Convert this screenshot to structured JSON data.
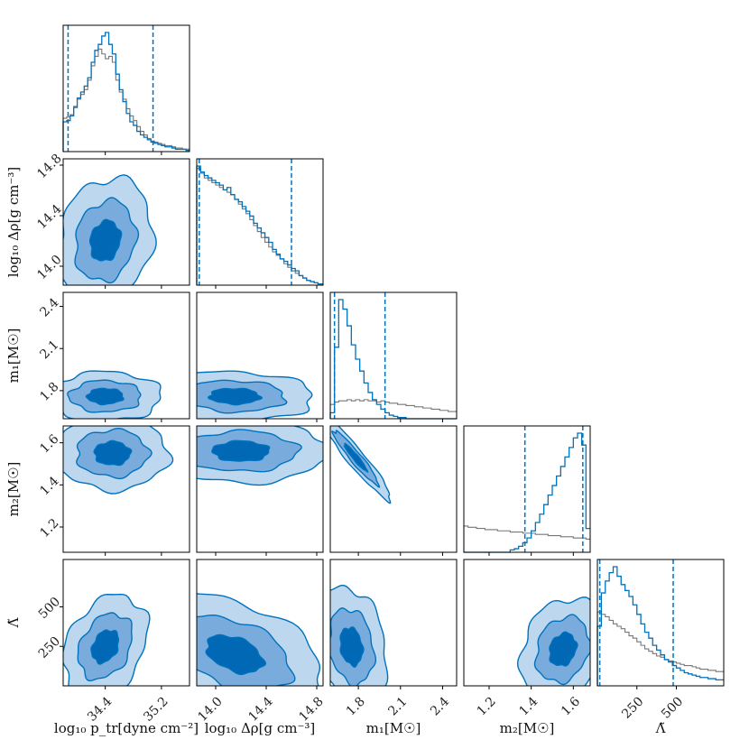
{
  "chart_data": {
    "type": "corner",
    "params": [
      {
        "key": "p",
        "label": "log₁₀ p_tr[dyne cm⁻²]",
        "range": [
          33.8,
          35.6
        ],
        "ticks": [
          34.4,
          35.2
        ],
        "tick_labels": [
          "34.4",
          "35.2"
        ],
        "hist_bins": [
          33.8,
          33.85,
          33.9,
          33.95,
          34.0,
          34.05,
          34.1,
          34.15,
          34.2,
          34.25,
          34.3,
          34.35,
          34.4,
          34.45,
          34.5,
          34.55,
          34.6,
          34.65,
          34.7,
          34.75,
          34.8,
          34.85,
          34.9,
          34.95,
          35.0,
          35.05,
          35.1,
          35.15,
          35.2,
          35.25,
          35.3,
          35.35,
          35.4,
          35.45,
          35.5,
          35.55,
          35.6
        ],
        "hist_post": [
          0.25,
          0.26,
          0.3,
          0.37,
          0.45,
          0.5,
          0.55,
          0.62,
          0.75,
          0.85,
          0.9,
          0.97,
          1.0,
          0.9,
          0.82,
          0.65,
          0.52,
          0.42,
          0.32,
          0.25,
          0.22,
          0.17,
          0.14,
          0.12,
          0.1,
          0.08,
          0.07,
          0.06,
          0.05,
          0.04,
          0.04,
          0.03,
          0.02,
          0.02,
          0.02,
          0.01
        ],
        "hist_prior": [
          0.28,
          0.29,
          0.31,
          0.38,
          0.44,
          0.48,
          0.52,
          0.6,
          0.72,
          0.8,
          0.86,
          0.82,
          0.78,
          0.8,
          0.75,
          0.6,
          0.5,
          0.44,
          0.36,
          0.3,
          0.26,
          0.21,
          0.17,
          0.14,
          0.11,
          0.09,
          0.08,
          0.07,
          0.06,
          0.05,
          0.05,
          0.04,
          0.03,
          0.03,
          0.02,
          0.02
        ],
        "quantiles": [
          33.87,
          35.08
        ]
      },
      {
        "key": "rho",
        "label": "log₁₀ Δρ[g cm⁻³]",
        "range": [
          13.85,
          14.85
        ],
        "ticks": [
          14.0,
          14.4,
          14.8
        ],
        "tick_labels": [
          "14.0",
          "14.4",
          "14.8"
        ],
        "hist_bins": [
          13.85,
          13.88,
          13.91,
          13.94,
          13.97,
          14.0,
          14.03,
          14.06,
          14.09,
          14.12,
          14.15,
          14.18,
          14.21,
          14.24,
          14.27,
          14.3,
          14.33,
          14.36,
          14.39,
          14.42,
          14.45,
          14.48,
          14.51,
          14.54,
          14.57,
          14.6,
          14.63,
          14.66,
          14.69,
          14.72,
          14.75,
          14.78,
          14.81,
          14.85
        ],
        "hist_post": [
          1.0,
          0.95,
          0.92,
          0.9,
          0.88,
          0.86,
          0.84,
          0.8,
          0.82,
          0.76,
          0.72,
          0.7,
          0.66,
          0.62,
          0.58,
          0.52,
          0.48,
          0.44,
          0.4,
          0.36,
          0.3,
          0.26,
          0.22,
          0.2,
          0.17,
          0.14,
          0.12,
          0.08,
          0.06,
          0.04,
          0.03,
          0.02,
          0.01
        ],
        "hist_prior": [
          0.98,
          0.94,
          0.9,
          0.88,
          0.86,
          0.84,
          0.82,
          0.8,
          0.78,
          0.76,
          0.72,
          0.68,
          0.64,
          0.6,
          0.55,
          0.5,
          0.45,
          0.4,
          0.36,
          0.32,
          0.28,
          0.25,
          0.22,
          0.18,
          0.15,
          0.12,
          0.1,
          0.08,
          0.06,
          0.04,
          0.03,
          0.02,
          0.01
        ],
        "quantiles": [
          13.87,
          14.6
        ]
      },
      {
        "key": "m1",
        "label": "m₁[M☉]",
        "range": [
          1.6,
          2.5
        ],
        "ticks": [
          1.8,
          2.1,
          2.4
        ],
        "tick_labels": [
          "1.8",
          "2.1",
          "2.4"
        ],
        "hist_bins": [
          1.6,
          1.63,
          1.66,
          1.69,
          1.72,
          1.75,
          1.78,
          1.81,
          1.84,
          1.87,
          1.9,
          1.93,
          1.96,
          1.99,
          2.02,
          2.05,
          2.08,
          2.11,
          2.14,
          2.17,
          2.2,
          2.23,
          2.26,
          2.29,
          2.32,
          2.35,
          2.38,
          2.41,
          2.44,
          2.47,
          2.5
        ],
        "hist_post": [
          0.05,
          0.6,
          1.0,
          0.92,
          0.78,
          0.62,
          0.5,
          0.4,
          0.3,
          0.22,
          0.16,
          0.12,
          0.08,
          0.05,
          0.03,
          0.02,
          0.01,
          0.01,
          0.0,
          0.0,
          0.0,
          0.0,
          0.0,
          0.0,
          0.0,
          0.0,
          0.0,
          0.0,
          0.0,
          0.0
        ],
        "hist_prior": [
          0.12,
          0.14,
          0.15,
          0.15,
          0.16,
          0.15,
          0.16,
          0.15,
          0.16,
          0.15,
          0.15,
          0.14,
          0.15,
          0.14,
          0.13,
          0.13,
          0.12,
          0.12,
          0.11,
          0.11,
          0.1,
          0.1,
          0.09,
          0.09,
          0.08,
          0.08,
          0.07,
          0.07,
          0.06,
          0.06
        ],
        "quantiles": [
          1.63,
          1.99
        ]
      },
      {
        "key": "m2",
        "label": "m₂[M☉]",
        "range": [
          1.08,
          1.68
        ],
        "ticks": [
          1.2,
          1.4,
          1.6
        ],
        "tick_labels": [
          "1.2",
          "1.4",
          "1.6"
        ],
        "hist_bins": [
          1.08,
          1.1,
          1.12,
          1.14,
          1.16,
          1.18,
          1.2,
          1.22,
          1.24,
          1.26,
          1.28,
          1.3,
          1.32,
          1.34,
          1.36,
          1.38,
          1.4,
          1.42,
          1.44,
          1.46,
          1.48,
          1.5,
          1.52,
          1.54,
          1.56,
          1.58,
          1.6,
          1.62,
          1.64,
          1.66,
          1.68
        ],
        "hist_post": [
          0.0,
          0.0,
          0.0,
          0.0,
          0.0,
          0.0,
          0.0,
          0.0,
          0.0,
          0.0,
          0.0,
          0.02,
          0.03,
          0.05,
          0.08,
          0.12,
          0.18,
          0.25,
          0.32,
          0.4,
          0.48,
          0.56,
          0.64,
          0.72,
          0.8,
          0.88,
          0.96,
          1.0,
          0.9,
          0.2
        ],
        "hist_prior": [
          0.22,
          0.21,
          0.21,
          0.2,
          0.2,
          0.19,
          0.19,
          0.19,
          0.18,
          0.18,
          0.18,
          0.17,
          0.17,
          0.17,
          0.16,
          0.16,
          0.16,
          0.15,
          0.15,
          0.15,
          0.14,
          0.14,
          0.14,
          0.13,
          0.13,
          0.13,
          0.12,
          0.12,
          0.12,
          0.11
        ],
        "quantiles": [
          1.37,
          1.645
        ]
      },
      {
        "key": "lam",
        "label": "Λ̃",
        "range": [
          0,
          800
        ],
        "ticks": [
          250,
          500
        ],
        "tick_labels": [
          "250",
          "500"
        ],
        "hist_bins": [
          0,
          25,
          50,
          75,
          100,
          125,
          150,
          175,
          200,
          225,
          250,
          275,
          300,
          325,
          350,
          375,
          400,
          425,
          450,
          475,
          500,
          525,
          550,
          575,
          600,
          625,
          650,
          675,
          700,
          725,
          750,
          775,
          800
        ],
        "hist_post": [
          0.5,
          0.78,
          0.88,
          0.95,
          1.0,
          0.92,
          0.85,
          0.8,
          0.75,
          0.68,
          0.6,
          0.52,
          0.45,
          0.4,
          0.34,
          0.3,
          0.26,
          0.22,
          0.2,
          0.17,
          0.15,
          0.13,
          0.11,
          0.1,
          0.09,
          0.08,
          0.07,
          0.07,
          0.06,
          0.06,
          0.05,
          0.05
        ],
        "hist_prior": [
          0.62,
          0.6,
          0.58,
          0.55,
          0.52,
          0.5,
          0.48,
          0.45,
          0.42,
          0.4,
          0.37,
          0.34,
          0.31,
          0.29,
          0.27,
          0.25,
          0.24,
          0.22,
          0.21,
          0.2,
          0.19,
          0.18,
          0.17,
          0.17,
          0.16,
          0.15,
          0.14,
          0.14,
          0.13,
          0.13,
          0.12,
          0.12
        ],
        "quantiles": [
          15,
          480
        ]
      }
    ],
    "posterior_2d": {
      "p-rho": {
        "mean": [
          34.4,
          14.2
        ],
        "sd": [
          0.27,
          0.2
        ],
        "corr": 0.15
      },
      "p-m1": {
        "mean": [
          34.4,
          1.76
        ],
        "sd": [
          0.32,
          0.07
        ],
        "corr": 0.0
      },
      "rho-m1": {
        "mean": [
          14.15,
          1.76
        ],
        "sd": [
          0.25,
          0.07
        ],
        "corr": -0.05
      },
      "p-m2": {
        "mean": [
          34.5,
          1.55
        ],
        "sd": [
          0.32,
          0.07
        ],
        "corr": 0.0
      },
      "rho-m2": {
        "mean": [
          14.2,
          1.56
        ],
        "sd": [
          0.28,
          0.06
        ],
        "corr": 0.0
      },
      "m1-m2": {
        "mean": [
          1.78,
          1.53
        ],
        "sd": [
          0.1,
          0.08
        ],
        "corr": -0.95
      },
      "p-lam": {
        "mean": [
          34.4,
          250
        ],
        "sd": [
          0.24,
          130
        ],
        "corr": 0.3
      },
      "rho-lam": {
        "mean": [
          14.15,
          200
        ],
        "sd": [
          0.28,
          150
        ],
        "corr": -0.4
      },
      "m1-lam": {
        "mean": [
          1.75,
          250
        ],
        "sd": [
          0.1,
          150
        ],
        "corr": -0.2
      },
      "m2-lam": {
        "mean": [
          1.55,
          230
        ],
        "sd": [
          0.08,
          130
        ],
        "corr": 0.2
      }
    },
    "legend": "none",
    "colors": {
      "posterior": "#0072bd",
      "prior": "#777777",
      "fill1": "#0068b5",
      "fill2": "#79acdc",
      "fill3": "#bcd7ee",
      "quantile": "#0072bd"
    }
  }
}
